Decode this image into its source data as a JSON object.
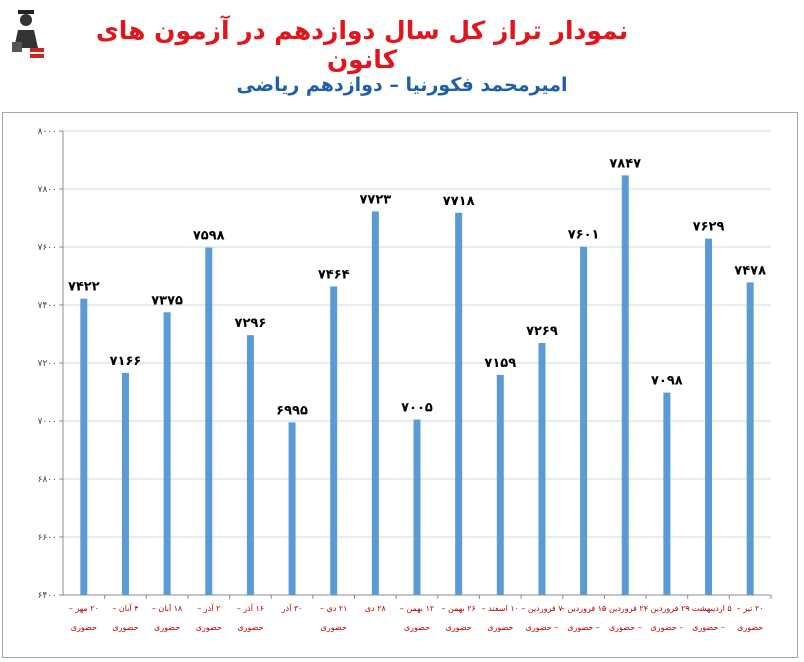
{
  "header": {
    "title": "نمودار تراز کل سال دوازدهم در آزمون های کانون",
    "subtitle": "امیرمحمد فکورنیا – دوازدهم ریاضی",
    "logo_alt": "کانون فرهنگی آموزش"
  },
  "colors": {
    "title": "#e1161c",
    "subtitle": "#1f5fa8",
    "bar": "#5b9bd5",
    "label": "#c00000",
    "grid": "#c9d9ee"
  },
  "chart_data": {
    "type": "bar",
    "title": "",
    "xlabel": "",
    "ylabel": "",
    "ylim": [
      6400,
      8000
    ],
    "y_ticks": [
      "۶۴۰۰",
      "۶۶۰۰",
      "۶۸۰۰",
      "۷۰۰۰",
      "۷۲۰۰",
      "۷۴۰۰",
      "۷۶۰۰",
      "۷۸۰۰",
      "۸۰۰۰"
    ],
    "y_tick_values": [
      6400,
      6600,
      6800,
      7000,
      7200,
      7400,
      7600,
      7800,
      8000
    ],
    "grid": true,
    "categories": [
      [
        "۲۰ مهر –",
        "حضوری"
      ],
      [
        "۴ آبان –",
        "حضوری"
      ],
      [
        "۱۸ آبان –",
        "حضوری"
      ],
      [
        "۲ آذر –",
        "حضوری"
      ],
      [
        "۱۶ آذر –",
        "حضوری"
      ],
      [
        "۳۰ آذر",
        ""
      ],
      [
        "۲۱ دی –",
        "حضوری"
      ],
      [
        "۲۸ دی",
        ""
      ],
      [
        "۱۲ بهمن –",
        "حضوری"
      ],
      [
        "۲۶ بهمن –",
        "حضوری"
      ],
      [
        "۱۰ اسفند –",
        "حضوری"
      ],
      [
        "۷ فروردین –",
        "– حضوری"
      ],
      [
        "۱۵ فروردین –",
        "– حضوری"
      ],
      [
        "۲۲ فروردین –",
        "– حضوری"
      ],
      [
        "۲۹ فروردین –",
        "– حضوری"
      ],
      [
        "۵ اردیبهشت –",
        "– حضوری"
      ],
      [
        "۲۰ تیر –",
        "حضوری"
      ]
    ],
    "values": [
      7422,
      7166,
      7375,
      7598,
      7296,
      6995,
      7464,
      7723,
      7005,
      7718,
      7159,
      7269,
      7601,
      7847,
      7098,
      7629,
      7478
    ],
    "data_labels": [
      "۷۴۲۲",
      "۷۱۶۶",
      "۷۳۷۵",
      "۷۵۹۸",
      "۷۲۹۶",
      "۶۹۹۵",
      "۷۴۶۴",
      "۷۷۲۳",
      "۷۰۰۵",
      "۷۷۱۸",
      "۷۱۵۹",
      "۷۲۶۹",
      "۷۶۰۱",
      "۷۸۴۷",
      "۷۰۹۸",
      "۷۶۲۹",
      "۷۴۷۸"
    ]
  }
}
